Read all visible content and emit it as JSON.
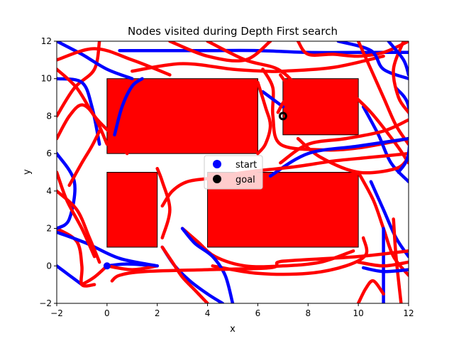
{
  "chart_data": {
    "type": "line",
    "title": "Nodes visited during Depth First search",
    "xlabel": "x",
    "ylabel": "y",
    "xlim": [
      -2,
      12
    ],
    "ylim": [
      -2,
      12
    ],
    "xticks": [
      -2,
      0,
      2,
      4,
      6,
      8,
      10,
      12
    ],
    "yticks": [
      -2,
      0,
      2,
      4,
      6,
      8,
      10,
      12
    ],
    "grid": false,
    "legend_position": "center",
    "colors": {
      "explored_primary": "#0000ff",
      "explored_secondary": "#ff0000",
      "obstacle": "#ff0000",
      "start": "#0000ff",
      "goal": "#000000"
    },
    "obstacles": [
      {
        "x": [
          0,
          6
        ],
        "y": [
          6,
          10
        ]
      },
      {
        "x": [
          7,
          10
        ],
        "y": [
          7,
          10
        ]
      },
      {
        "x": [
          0,
          2
        ],
        "y": [
          1,
          5
        ]
      },
      {
        "x": [
          4,
          10
        ],
        "y": [
          1,
          5
        ]
      }
    ],
    "series": [
      {
        "name": "start",
        "marker": "circle",
        "color": "#0000ff",
        "x": [
          0
        ],
        "y": [
          0
        ]
      },
      {
        "name": "goal",
        "marker": "circle",
        "color": "#000000",
        "x": [
          7
        ],
        "y": [
          8
        ]
      }
    ],
    "paths": [
      {
        "color": "#0000ff",
        "x": [
          -2,
          -1.5,
          -1
        ],
        "y": [
          0,
          -0.5,
          -1
        ]
      },
      {
        "color": "#0000ff",
        "x": [
          0,
          0.8,
          2
        ],
        "y": [
          0,
          0.1,
          0
        ]
      },
      {
        "color": "#ff0000",
        "x": [
          -1,
          -0.5,
          0
        ],
        "y": [
          -1,
          -0.6,
          0
        ]
      },
      {
        "color": "#ff0000",
        "x": [
          0,
          1,
          2
        ],
        "y": [
          0,
          -0.2,
          0
        ]
      },
      {
        "color": "#ff0000",
        "x": [
          -2,
          -1.2,
          -1,
          -1,
          -0.5
        ],
        "y": [
          2,
          1.3,
          0,
          -1,
          -1
        ]
      },
      {
        "color": "#0000ff",
        "x": [
          -2,
          -0.8,
          0.5,
          2
        ],
        "y": [
          1.8,
          1.2,
          0.4,
          0
        ]
      },
      {
        "color": "#0000ff",
        "x": [
          -2,
          -1.3,
          -1.5,
          -2
        ],
        "y": [
          6,
          4.5,
          2.5,
          2
        ]
      },
      {
        "color": "#ff0000",
        "x": [
          -2,
          -1.6,
          -1,
          -0.5
        ],
        "y": [
          5,
          3.5,
          2,
          0.5
        ]
      },
      {
        "color": "#ff0000",
        "x": [
          -2,
          -1.3,
          -0.5,
          -0.3
        ],
        "y": [
          8,
          9.5,
          10.5,
          12
        ]
      },
      {
        "color": "#0000ff",
        "x": [
          -2,
          -1.0,
          -0.6,
          -0.3
        ],
        "y": [
          10,
          9.8,
          8.5,
          6.5
        ]
      },
      {
        "color": "#ff0000",
        "x": [
          -2,
          -1.2,
          -0.5,
          0.2,
          0.8
        ],
        "y": [
          10.5,
          9.5,
          8.0,
          7.0,
          6.0
        ]
      },
      {
        "color": "#0000ff",
        "x": [
          -2,
          -1.0,
          0.0,
          1.0
        ],
        "y": [
          12,
          11.3,
          10.5,
          10
        ]
      },
      {
        "color": "#ff0000",
        "x": [
          -2,
          -0.5,
          1.0,
          2.5
        ],
        "y": [
          11,
          11.6,
          11.0,
          10.2
        ]
      },
      {
        "color": "#0000ff",
        "x": [
          0.5,
          2,
          4,
          6,
          8,
          10,
          12
        ],
        "y": [
          11.5,
          11.5,
          11.5,
          11.5,
          11.4,
          11.4,
          11.4
        ]
      },
      {
        "color": "#ff0000",
        "x": [
          1,
          3,
          5,
          6.3,
          7,
          9,
          11
        ],
        "y": [
          10.4,
          10.8,
          10.5,
          10.4,
          10.4,
          10.6,
          11.2
        ]
      },
      {
        "color": "#ff0000",
        "x": [
          2.5,
          4,
          5.5,
          6.5
        ],
        "y": [
          12,
          11.2,
          11.0,
          12
        ]
      },
      {
        "color": "#ff0000",
        "x": [
          4,
          5.5,
          6.8,
          7.5,
          7.2
        ],
        "y": [
          12,
          11.0,
          10.5,
          9.5,
          8.3
        ]
      },
      {
        "color": "#ff0000",
        "x": [
          6.2,
          6.6,
          6.6,
          6.9,
          8.5,
          10,
          12
        ],
        "y": [
          10.5,
          9.5,
          8.0,
          6.5,
          6.2,
          6.3,
          6.8
        ]
      },
      {
        "color": "#0000ff",
        "x": [
          6.2,
          6.7,
          7.0
        ],
        "y": [
          9.3,
          8.8,
          8.5
        ]
      },
      {
        "color": "#ff0000",
        "x": [
          7.6,
          8,
          9,
          10,
          11,
          12
        ],
        "y": [
          12,
          11.3,
          11.3,
          11.2,
          11.4,
          12
        ]
      },
      {
        "color": "#0000ff",
        "x": [
          9.2,
          10.5,
          11,
          12
        ],
        "y": [
          12,
          11.5,
          10.5,
          10
        ]
      },
      {
        "color": "#ff0000",
        "x": [
          10.0,
          10.5,
          11.0,
          11.5,
          12
        ],
        "y": [
          12,
          10.5,
          9.0,
          7.5,
          6.5
        ]
      },
      {
        "color": "#0000ff",
        "x": [
          10.2,
          10.8,
          11.3,
          12
        ],
        "y": [
          8.5,
          7.0,
          5.5,
          4.5
        ]
      },
      {
        "color": "#ff0000",
        "x": [
          9.5,
          10.5,
          11.5,
          12
        ],
        "y": [
          9.5,
          8.2,
          6.5,
          5.5
        ]
      },
      {
        "color": "#ff0000",
        "x": [
          7.6,
          8.5,
          10,
          11.5,
          12
        ],
        "y": [
          6.8,
          5.8,
          5.0,
          5.2,
          5.8
        ]
      },
      {
        "color": "#0000ff",
        "x": [
          6.5,
          8,
          10,
          12
        ],
        "y": [
          4.8,
          6.0,
          6.4,
          6.8
        ]
      },
      {
        "color": "#ff0000",
        "x": [
          6.9,
          8,
          9.5,
          11,
          12
        ],
        "y": [
          5.5,
          6.5,
          6.8,
          7.2,
          7.8
        ]
      },
      {
        "color": "#ff0000",
        "x": [
          10.0,
          10.6,
          11.0,
          11.4,
          12
        ],
        "y": [
          5.0,
          3.5,
          2.0,
          0.5,
          -0.5
        ]
      },
      {
        "color": "#0000ff",
        "x": [
          10.5,
          11.0,
          11.5,
          12
        ],
        "y": [
          4.5,
          3.0,
          1.5,
          0.5
        ]
      },
      {
        "color": "#0000ff",
        "x": [
          11.0,
          11.0,
          11.0
        ],
        "y": [
          2,
          0,
          -2
        ]
      },
      {
        "color": "#ff0000",
        "x": [
          11.4,
          11.5,
          11.7
        ],
        "y": [
          2.5,
          0.5,
          -2
        ]
      },
      {
        "color": "#ff0000",
        "x": [
          10,
          11,
          12
        ],
        "y": [
          0.2,
          0.0,
          0.2
        ]
      },
      {
        "color": "#0000ff",
        "x": [
          10.2,
          11,
          12
        ],
        "y": [
          -0.1,
          -0.3,
          -0.2
        ]
      },
      {
        "color": "#ff0000",
        "x": [
          10.0,
          10.3,
          10.6,
          11.0
        ],
        "y": [
          -2,
          -1.2,
          -0.8,
          -1.5
        ]
      },
      {
        "color": "#ff0000",
        "x": [
          4.2,
          6,
          8,
          9.5,
          10.3,
          10.2
        ],
        "y": [
          0.0,
          -0.4,
          -0.4,
          0.0,
          0.6,
          1.5
        ]
      },
      {
        "color": "#ff0000",
        "x": [
          3,
          3.6,
          4.3,
          5.5,
          7,
          8.5,
          9.8
        ],
        "y": [
          2.0,
          1.3,
          0.5,
          0.0,
          0.0,
          0.2,
          0.8
        ]
      },
      {
        "color": "#0000ff",
        "x": [
          3.0,
          3.5,
          4.2,
          4.7,
          5.0
        ],
        "y": [
          2.0,
          1.2,
          0.5,
          -0.5,
          -2
        ]
      },
      {
        "color": "#0000ff",
        "x": [
          2.2,
          2.7,
          3.3,
          4.0,
          4.6
        ],
        "y": [
          1.0,
          0.0,
          -0.8,
          -1.5,
          -2
        ]
      },
      {
        "color": "#ff0000",
        "x": [
          2.2,
          2.6,
          3.0,
          3.5,
          4.0
        ],
        "y": [
          1.0,
          0.2,
          -0.6,
          -1.3,
          -2
        ]
      },
      {
        "color": "#ff0000",
        "x": [
          2.2,
          2.6,
          3.2,
          4.2,
          5.5,
          7.5,
          9,
          10.5,
          12
        ],
        "y": [
          3.2,
          4.0,
          4.5,
          4.7,
          5.0,
          5.3,
          5.6,
          5.8,
          6.0
        ]
      },
      {
        "color": "#ff0000",
        "x": [
          2.2,
          2.5,
          2.2,
          2.0
        ],
        "y": [
          1.5,
          3.0,
          4.5,
          5.2
        ]
      },
      {
        "color": "#0000ff",
        "x": [
          0.3,
          0.6,
          1.0,
          1.4
        ],
        "y": [
          7.0,
          8.5,
          9.6,
          10.0
        ]
      },
      {
        "color": "#ff0000",
        "x": [
          -2,
          -1.5,
          -1.0,
          -0.5,
          0.0
        ],
        "y": [
          6.8,
          8.0,
          8.6,
          8.0,
          6.5
        ]
      },
      {
        "color": "#ff0000",
        "x": [
          -1.5,
          -1.0,
          -0.6,
          -0.3
        ],
        "y": [
          4.3,
          5.5,
          6.4,
          7.2
        ]
      },
      {
        "color": "#ff0000",
        "x": [
          -2,
          -1.2,
          -0.7,
          -0.3
        ],
        "y": [
          4.0,
          3.0,
          1.5,
          0.2
        ]
      },
      {
        "color": "#ff0000",
        "x": [
          0.2,
          0.5,
          1.5,
          4,
          6.5,
          6.8,
          7.5,
          10,
          12
        ],
        "y": [
          -0.8,
          -0.5,
          -0.3,
          -0.2,
          -0.1,
          0.2,
          0.3,
          0.5,
          0.8
        ]
      },
      {
        "color": "#0000ff",
        "x": [
          11.5,
          12,
          12,
          11.6
        ],
        "y": [
          9.5,
          8.5,
          6.0,
          5.0
        ]
      },
      {
        "color": "#ff0000",
        "x": [
          11.8,
          11.4,
          11.6,
          12
        ],
        "y": [
          12,
          10.5,
          9.0,
          8.2
        ]
      },
      {
        "color": "#0000ff",
        "x": [
          11.2,
          11.8,
          12
        ],
        "y": [
          12,
          11.0,
          10.2
        ]
      },
      {
        "color": "#ff0000",
        "x": [
          6.0,
          6.3,
          6.5,
          6.3,
          6.0
        ],
        "y": [
          6.0,
          6.5,
          7.5,
          8.5,
          9.8
        ]
      },
      {
        "color": "#ff0000",
        "x": [
          6.9,
          7.3,
          7.0,
          6.8
        ],
        "y": [
          10.2,
          9.3,
          8.7,
          8.2
        ]
      }
    ]
  }
}
